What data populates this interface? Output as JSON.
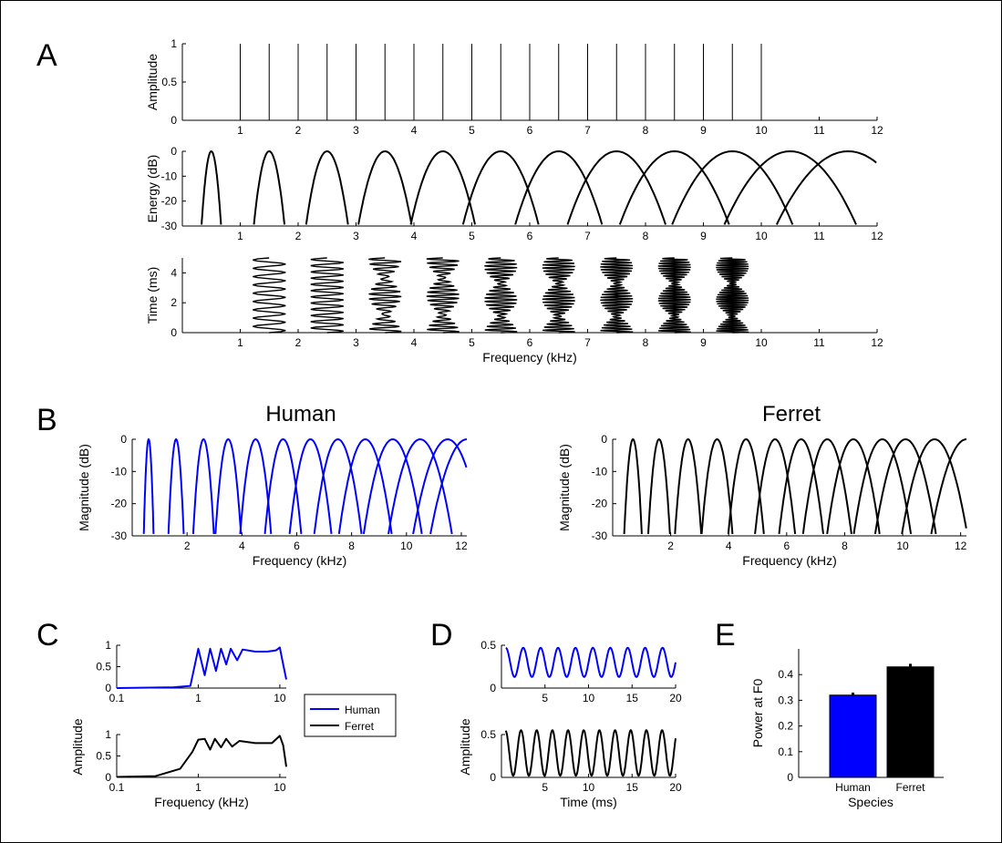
{
  "colors": {
    "human": "#0000ff",
    "ferret": "#000000"
  },
  "panels": {
    "A": "A",
    "B": "B",
    "C": "C",
    "D": "D",
    "E": "E"
  },
  "chart_data": [
    {
      "id": "A1",
      "type": "line",
      "ylabel": "Amplitude",
      "xlim": [
        0,
        12
      ],
      "ylim": [
        0,
        1
      ],
      "xticks": [
        "1",
        "2",
        "3",
        "4",
        "5",
        "6",
        "7",
        "8",
        "9",
        "10",
        "11",
        "12"
      ],
      "yticks": [
        "0",
        "0.5",
        "1"
      ],
      "harmonics_khz": [
        1,
        1.5,
        2,
        2.5,
        3,
        3.5,
        4,
        4.5,
        5,
        5.5,
        6,
        6.5,
        7,
        7.5,
        8,
        8.5,
        9,
        9.5,
        10
      ],
      "harmonic_amplitude": 1
    },
    {
      "id": "A2",
      "type": "line",
      "ylabel": "Energy (dB)",
      "xlim": [
        0,
        12
      ],
      "ylim": [
        -30,
        0
      ],
      "xticks": [
        "1",
        "2",
        "3",
        "4",
        "5",
        "6",
        "7",
        "8",
        "9",
        "10",
        "11",
        "12"
      ],
      "yticks": [
        "0",
        "-10",
        "-20",
        "-30"
      ],
      "filter_centers_khz": [
        0.5,
        1.5,
        2.5,
        3.5,
        4.5,
        5.5,
        6.5,
        7.5,
        8.5,
        9.5,
        10.5,
        11.5
      ]
    },
    {
      "id": "A3",
      "type": "line",
      "xlabel": "Frequency (kHz)",
      "ylabel": "Time (ms)",
      "xlim": [
        0,
        12
      ],
      "ylim": [
        0,
        5
      ],
      "xticks": [
        "1",
        "2",
        "3",
        "4",
        "5",
        "6",
        "7",
        "8",
        "9",
        "10",
        "11",
        "12"
      ],
      "yticks": [
        "0",
        "2",
        "4"
      ],
      "waveform_centers_khz": [
        1.5,
        2.5,
        3.5,
        4.5,
        5.5,
        6.5,
        7.5,
        8.5,
        9.5
      ]
    },
    {
      "id": "B-human",
      "type": "line",
      "title": "Human",
      "xlabel": "Frequency (kHz)",
      "ylabel": "Magnitude (dB)",
      "xlim": [
        0,
        12.2
      ],
      "ylim": [
        -30,
        0
      ],
      "xticks": [
        "2",
        "4",
        "6",
        "8",
        "10",
        "12"
      ],
      "yticks": [
        "0",
        "-10",
        "-20",
        "-30"
      ],
      "filter_centers_khz": [
        0.6,
        1.6,
        2.6,
        3.5,
        4.5,
        5.5,
        6.5,
        7.5,
        8.5,
        9.5,
        10.5,
        11.5,
        12.2
      ],
      "color": "#0000ff"
    },
    {
      "id": "B-ferret",
      "type": "line",
      "title": "Ferret",
      "xlabel": "Frequency (kHz)",
      "ylabel": "Magnitude (dB)",
      "xlim": [
        0,
        12.2
      ],
      "ylim": [
        -30,
        0
      ],
      "xticks": [
        "2",
        "4",
        "6",
        "8",
        "10",
        "12"
      ],
      "yticks": [
        "0",
        "-10",
        "-20",
        "-30"
      ],
      "filter_centers_khz": [
        0.7,
        1.6,
        2.6,
        3.6,
        4.6,
        5.6,
        6.5,
        7.4,
        8.3,
        9.3,
        10.1,
        11.1,
        12.2
      ],
      "color": "#000000"
    },
    {
      "id": "C-human",
      "type": "line",
      "xlim": [
        0.1,
        12
      ],
      "ylim": [
        0,
        1
      ],
      "xscale": "log",
      "xticks": [
        "0.1",
        "1",
        "10"
      ],
      "yticks": [
        "0",
        "0.5",
        "1"
      ],
      "series": [
        {
          "color": "#0000ff",
          "points": [
            [
              0.1,
              0
            ],
            [
              0.5,
              0.02
            ],
            [
              0.8,
              0.05
            ],
            [
              1.0,
              0.92
            ],
            [
              1.2,
              0.3
            ],
            [
              1.4,
              0.92
            ],
            [
              1.65,
              0.4
            ],
            [
              1.9,
              0.92
            ],
            [
              2.2,
              0.55
            ],
            [
              2.5,
              0.92
            ],
            [
              3,
              0.65
            ],
            [
              3.5,
              0.9
            ],
            [
              5,
              0.85
            ],
            [
              7,
              0.85
            ],
            [
              9,
              0.88
            ],
            [
              10,
              0.95
            ],
            [
              11,
              0.55
            ],
            [
              12,
              0.2
            ]
          ]
        }
      ]
    },
    {
      "id": "C-ferret",
      "type": "line",
      "xlabel": "Frequency (kHz)",
      "ylabel": "Amplitude",
      "xlim": [
        0.1,
        12
      ],
      "ylim": [
        0,
        1
      ],
      "xscale": "log",
      "xticks": [
        "0.1",
        "1",
        "10"
      ],
      "yticks": [
        "0",
        "0.5",
        "1"
      ],
      "series": [
        {
          "color": "#000000",
          "points": [
            [
              0.1,
              0.01
            ],
            [
              0.3,
              0.03
            ],
            [
              0.6,
              0.2
            ],
            [
              0.85,
              0.6
            ],
            [
              1.0,
              0.88
            ],
            [
              1.2,
              0.9
            ],
            [
              1.4,
              0.65
            ],
            [
              1.6,
              0.9
            ],
            [
              1.9,
              0.7
            ],
            [
              2.2,
              0.9
            ],
            [
              2.6,
              0.72
            ],
            [
              3.2,
              0.85
            ],
            [
              5,
              0.8
            ],
            [
              8,
              0.8
            ],
            [
              10,
              0.97
            ],
            [
              11,
              0.75
            ],
            [
              12,
              0.25
            ]
          ]
        }
      ]
    },
    {
      "id": "C-legend",
      "legend": [
        {
          "name": "Human",
          "color": "#0000ff"
        },
        {
          "name": "Ferret",
          "color": "#000000"
        }
      ]
    },
    {
      "id": "D-human",
      "type": "line",
      "xlim": [
        0,
        20
      ],
      "ylim": [
        0,
        0.5
      ],
      "xticks": [
        "5",
        "10",
        "15",
        "20"
      ],
      "yticks": [
        "0",
        "0.5"
      ],
      "period_ms": 2,
      "min": 0.13,
      "max": 0.47,
      "color": "#0000ff"
    },
    {
      "id": "D-ferret",
      "type": "line",
      "xlabel": "Time (ms)",
      "ylabel": "Amplitude",
      "xlim": [
        0,
        20
      ],
      "ylim": [
        0,
        0.5
      ],
      "xticks": [
        "5",
        "10",
        "15",
        "20"
      ],
      "yticks": [
        "0",
        "0.5"
      ],
      "period_ms": 1.8,
      "min": 0.02,
      "max": 0.55,
      "color": "#000000"
    },
    {
      "id": "E",
      "type": "bar",
      "xlabel": "Species",
      "ylabel": "Power at F0",
      "categories": [
        "Human",
        "Ferret"
      ],
      "values": [
        0.32,
        0.43
      ],
      "errors": [
        0.01,
        0.012
      ],
      "colors": [
        "#0000ff",
        "#000000"
      ],
      "ylim": [
        0,
        0.5
      ],
      "yticks": [
        "0",
        "0.1",
        "0.2",
        "0.3",
        "0.4"
      ]
    }
  ]
}
